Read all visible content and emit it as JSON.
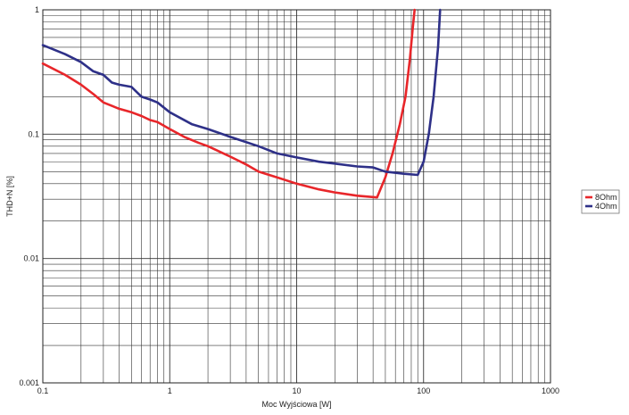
{
  "chart_data": {
    "type": "line",
    "title": "",
    "xlabel": "Moc Wyjściowa [W]",
    "ylabel": "THD+N [%]",
    "x_scale": "log",
    "y_scale": "log",
    "xlim": [
      0.1,
      1000
    ],
    "ylim": [
      0.001,
      1
    ],
    "x_ticks": [
      {
        "value": 0.1,
        "label": "0.1"
      },
      {
        "value": 1,
        "label": "1"
      },
      {
        "value": 10,
        "label": "10"
      },
      {
        "value": 100,
        "label": "100"
      },
      {
        "value": 1000,
        "label": "1000"
      }
    ],
    "y_ticks": [
      {
        "value": 0.001,
        "label": "0.001"
      },
      {
        "value": 0.01,
        "label": "0.01"
      },
      {
        "value": 0.1,
        "label": "0.1"
      },
      {
        "value": 1,
        "label": "1"
      }
    ],
    "grid": true,
    "legend_position": "right",
    "series": [
      {
        "name": "8Ohm",
        "color": "#e8262a",
        "x": [
          0.1,
          0.15,
          0.2,
          0.25,
          0.3,
          0.4,
          0.5,
          0.6,
          0.7,
          0.8,
          1,
          1.3,
          1.7,
          2,
          3,
          4,
          5,
          7,
          10,
          15,
          20,
          30,
          43,
          50,
          57,
          65,
          72,
          78,
          82,
          85
        ],
        "y": [
          0.37,
          0.3,
          0.25,
          0.21,
          0.18,
          0.16,
          0.15,
          0.14,
          0.13,
          0.125,
          0.11,
          0.095,
          0.085,
          0.08,
          0.066,
          0.057,
          0.05,
          0.045,
          0.04,
          0.036,
          0.034,
          0.032,
          0.031,
          0.045,
          0.07,
          0.12,
          0.2,
          0.4,
          0.7,
          1.0
        ]
      },
      {
        "name": "4Ohm",
        "color": "#2e3088",
        "x": [
          0.1,
          0.15,
          0.2,
          0.25,
          0.3,
          0.35,
          0.4,
          0.5,
          0.6,
          0.7,
          0.8,
          1,
          1.5,
          2,
          3,
          5,
          7,
          10,
          15,
          20,
          30,
          40,
          50,
          70,
          90,
          100,
          110,
          120,
          130,
          135
        ],
        "y": [
          0.52,
          0.44,
          0.38,
          0.32,
          0.3,
          0.26,
          0.25,
          0.24,
          0.2,
          0.19,
          0.18,
          0.15,
          0.12,
          0.11,
          0.095,
          0.08,
          0.07,
          0.065,
          0.06,
          0.058,
          0.055,
          0.054,
          0.05,
          0.048,
          0.047,
          0.06,
          0.1,
          0.2,
          0.5,
          1.0
        ]
      }
    ]
  }
}
